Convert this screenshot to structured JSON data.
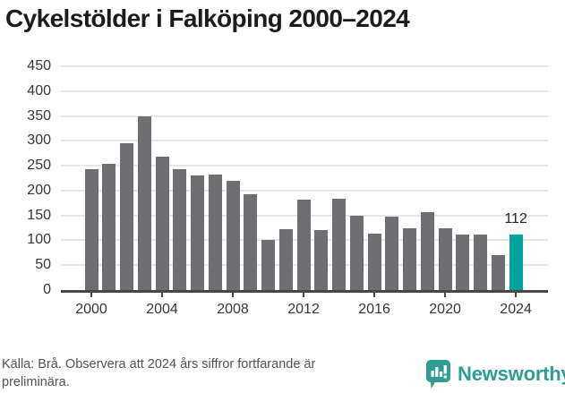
{
  "title": "Cykelstölder i Falköping 2000–2024",
  "chart_data": {
    "type": "bar",
    "title": "Cykelstölder i Falköping 2000–2024",
    "xlabel": "",
    "ylabel": "",
    "ylim": [
      0,
      450
    ],
    "grid": true,
    "legend": "none",
    "y_ticks": [
      0,
      50,
      100,
      150,
      200,
      250,
      300,
      350,
      400,
      450
    ],
    "x_tick_years": [
      2000,
      2004,
      2008,
      2012,
      2016,
      2020,
      2024
    ],
    "categories": [
      2000,
      2001,
      2002,
      2003,
      2004,
      2005,
      2006,
      2007,
      2008,
      2009,
      2010,
      2011,
      2012,
      2013,
      2014,
      2015,
      2016,
      2017,
      2018,
      2019,
      2020,
      2021,
      2022,
      2023,
      2024
    ],
    "values": [
      243,
      254,
      296,
      350,
      268,
      243,
      231,
      232,
      220,
      193,
      101,
      122,
      181,
      121,
      183,
      150,
      114,
      147,
      125,
      157,
      125,
      111,
      112,
      71,
      112
    ],
    "highlight_year": 2024,
    "highlight_label": "112",
    "bar_color": "#6f6e73",
    "highlight_color": "#00a39b",
    "axis_color": "#474747",
    "grid_color": "#e7e7e7"
  },
  "footer": {
    "source_line1": "Källa: Brå. Observera att 2024 års siffror fortfarande är",
    "source_line2": "preliminära.",
    "brand_name": "Newsworthy",
    "brand_color": "#2f9d96"
  }
}
